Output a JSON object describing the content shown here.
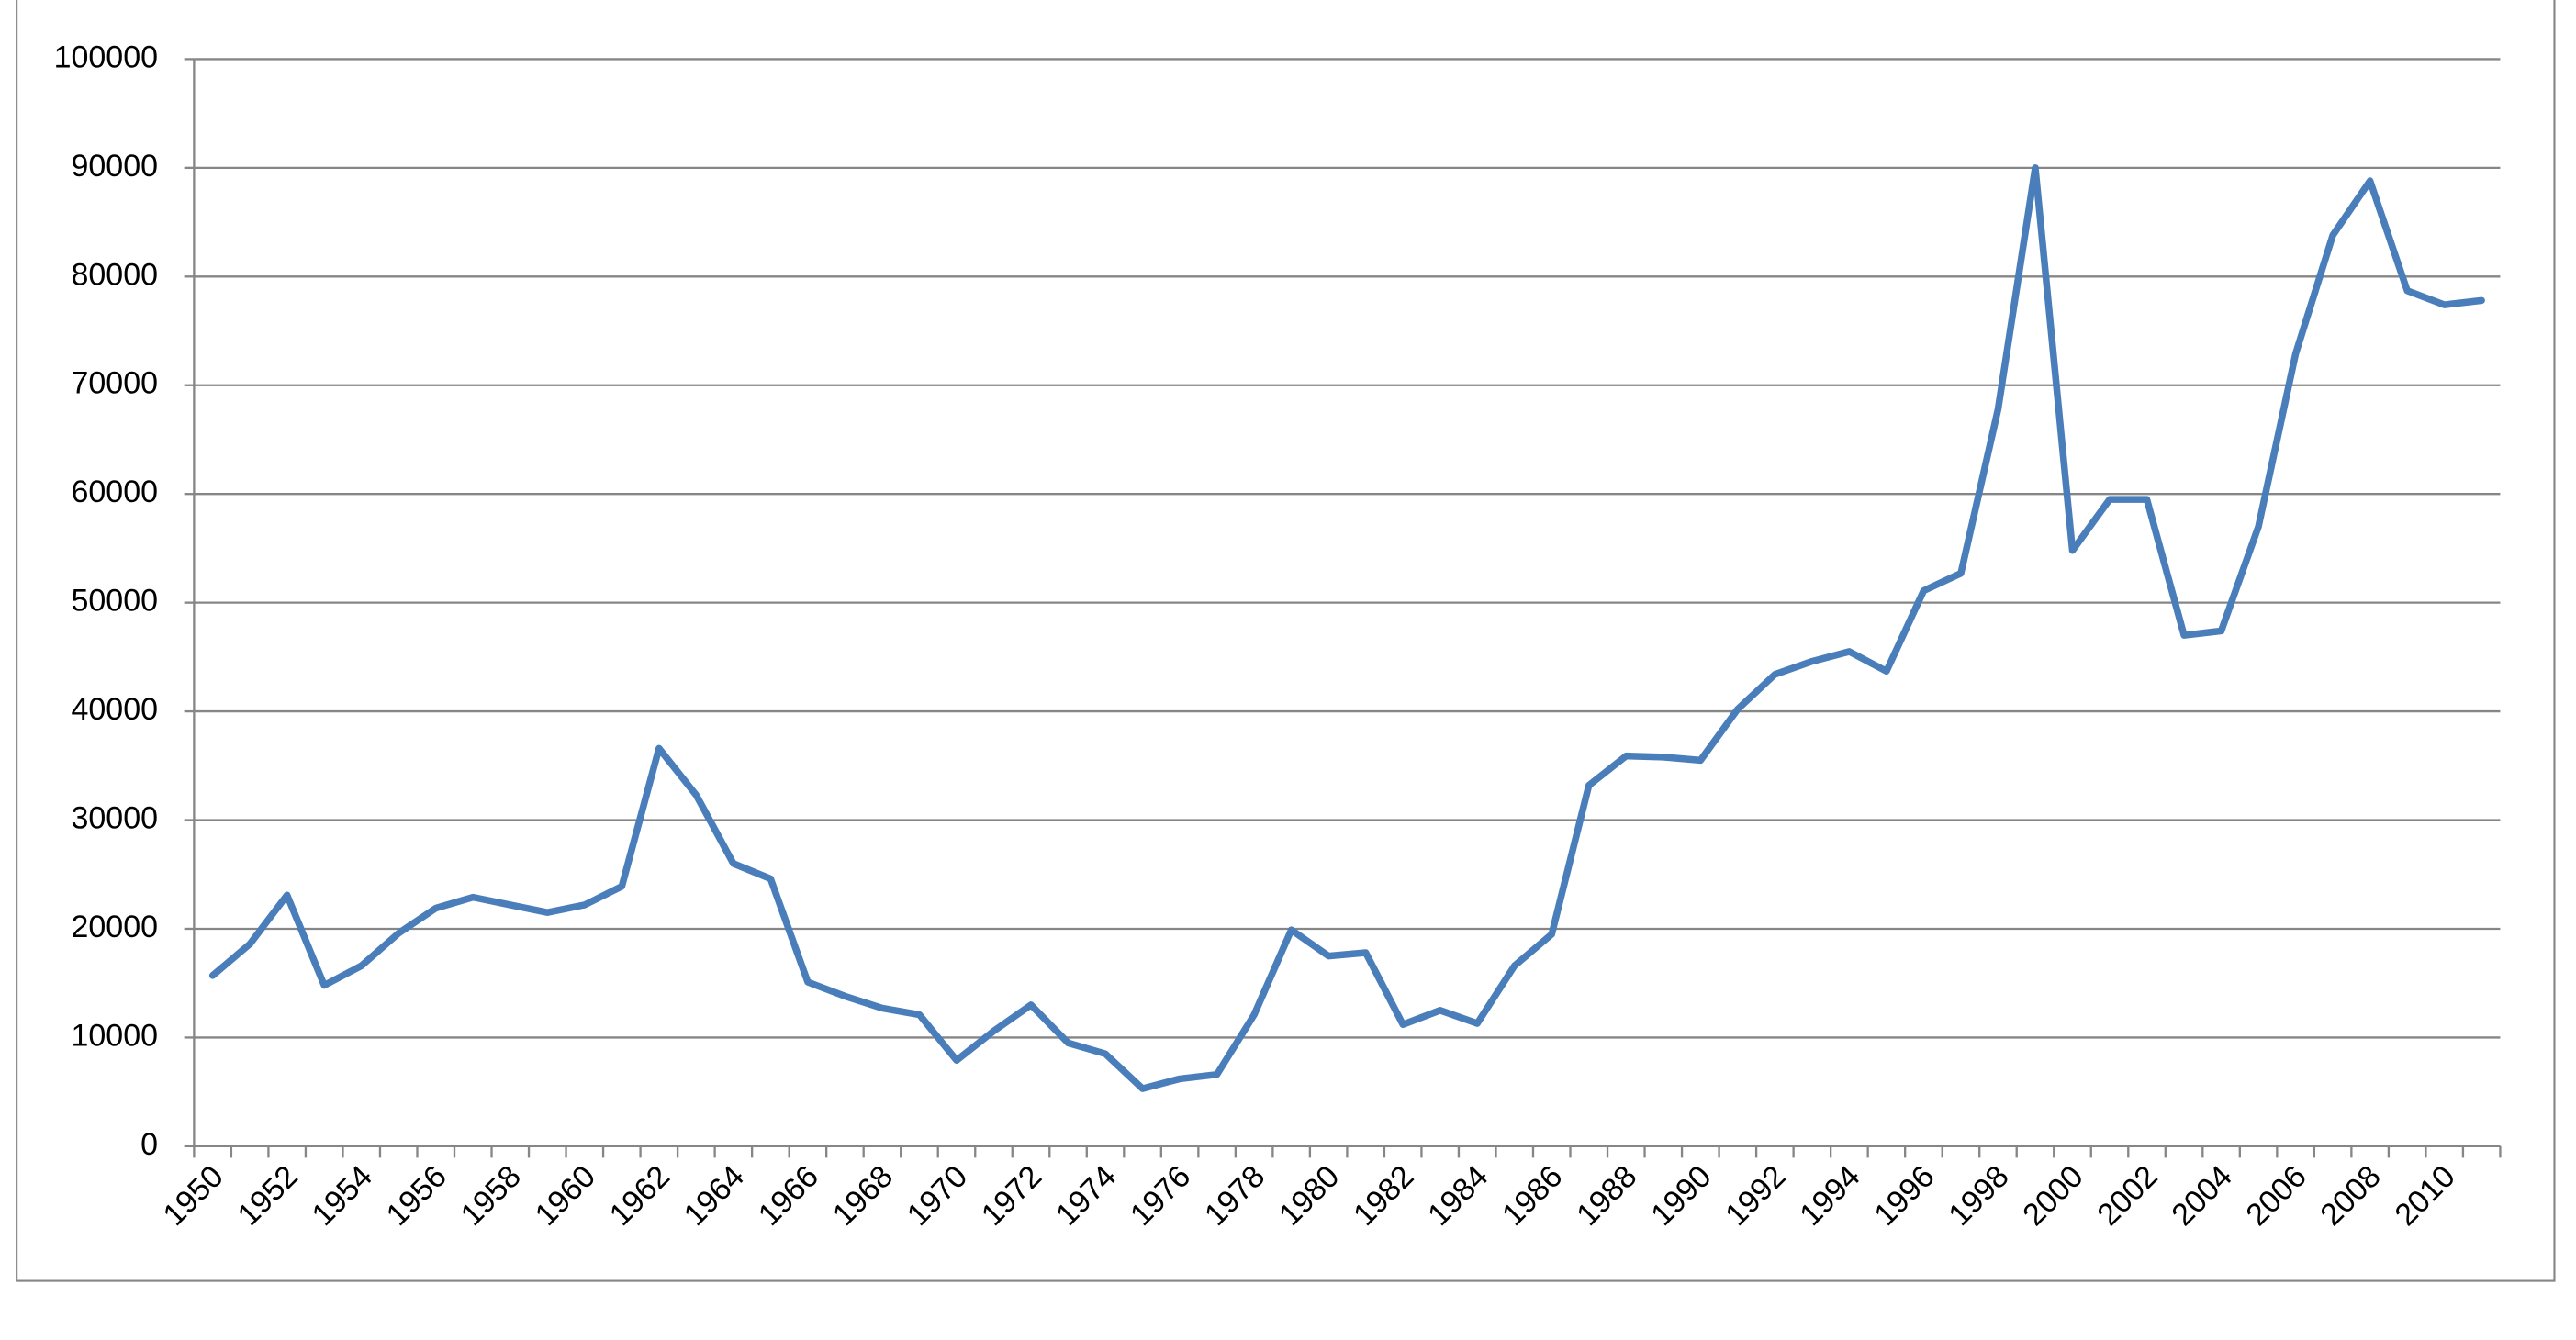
{
  "chart_data": {
    "type": "line",
    "categories": [
      "1950",
      null,
      "1952",
      null,
      "1954",
      null,
      "1956",
      null,
      "1958",
      null,
      "1960",
      null,
      "1962",
      null,
      "1964",
      null,
      "1966",
      null,
      "1968",
      null,
      "1970",
      null,
      "1972",
      null,
      "1974",
      null,
      "1976",
      null,
      "1978",
      null,
      "1980",
      null,
      "1982",
      null,
      "1984",
      null,
      "1986",
      null,
      "1988",
      null,
      "1990",
      null,
      "1992",
      null,
      "1994",
      null,
      "1996",
      null,
      "1998",
      null,
      "2000",
      null,
      "2002",
      null,
      "2004",
      null,
      "2006",
      null,
      "2008",
      null,
      "2010",
      null
    ],
    "series": [
      {
        "color": "#4a7ebb",
        "values": [
          15700,
          18600,
          23100,
          14800,
          16600,
          19600,
          21900,
          22900,
          22200,
          21500,
          22200,
          23900,
          36600,
          32300,
          26000,
          24600,
          15100,
          13800,
          12700,
          12100,
          7900,
          10600,
          13000,
          9500,
          8500,
          5300,
          6200,
          6600,
          12100,
          19900,
          17500,
          17800,
          11200,
          12500,
          11300,
          16600,
          19500,
          33200,
          35900,
          35800,
          35500,
          40200,
          43400,
          44600,
          45500,
          43700,
          51100,
          52700,
          67800,
          90000,
          54800,
          59500,
          59500,
          47000,
          47400,
          57000,
          72900,
          83800,
          88800,
          78700,
          77400,
          77800
        ]
      }
    ],
    "ylim": [
      0,
      100000
    ],
    "yticks": [
      0,
      10000,
      20000,
      30000,
      40000,
      50000,
      60000,
      70000,
      80000,
      90000,
      100000
    ],
    "grid": true
  }
}
